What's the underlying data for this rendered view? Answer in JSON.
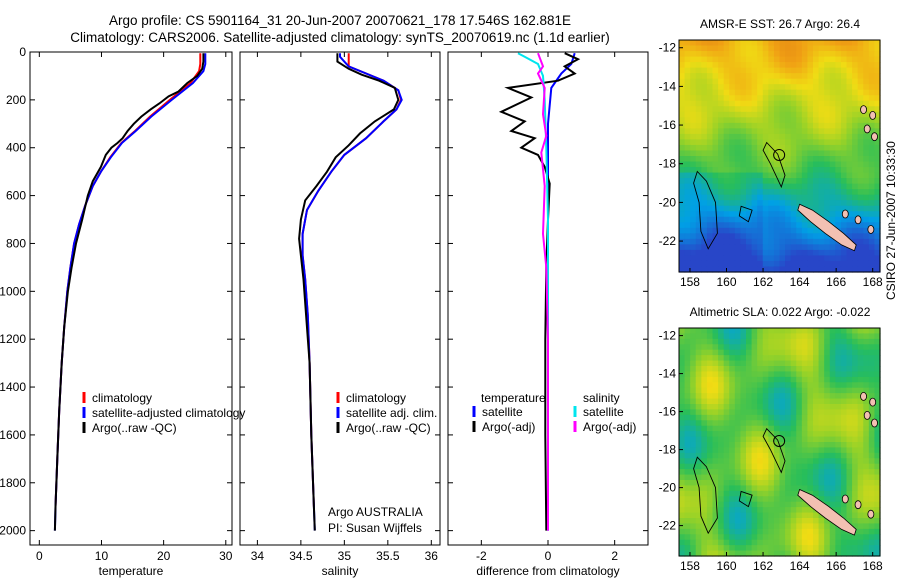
{
  "header": {
    "line1": "Argo profile: CS 5901164_31 20-Jun-2007 20070621_178 17.546S 162.881E",
    "line2": "Climatology: CARS2006. Satellite-adjusted climatology: synTS_20070619.nc (1.1d earlier)"
  },
  "credit": {
    "agency": "Argo AUSTRALIA",
    "pi": "PI: Susan Wijffels",
    "stamp": "CSIRO 27-Jun-2007 10:33:30"
  },
  "colors": {
    "climatology": "#ff0000",
    "satellite": "#0000ff",
    "argo": "#000000",
    "satellite_sal": "#00e5ee",
    "argo_sal": "#ff00ff",
    "land": "#f2c0b2"
  },
  "chart_data": [
    {
      "id": "temperature",
      "type": "line",
      "xlabel": "temperature",
      "xlim": [
        -1.5,
        31
      ],
      "ylim": [
        2060,
        0
      ],
      "xticks": [
        0,
        10,
        20,
        30
      ],
      "yticks": [
        0,
        200,
        400,
        600,
        800,
        1000,
        1200,
        1400,
        1600,
        1800,
        2000
      ],
      "legend": [
        "climatology",
        "satellite-adjusted climatology",
        "Argo(..raw -QC)"
      ],
      "series": [
        {
          "name": "climatology",
          "color": "#ff0000",
          "points": [
            [
              25.9,
              5
            ],
            [
              25.9,
              50
            ],
            [
              25.7,
              80
            ],
            [
              24.3,
              130
            ],
            [
              21,
              200
            ],
            [
              17.8,
              270
            ],
            [
              15.4,
              330
            ],
            [
              13.2,
              380
            ],
            [
              11.4,
              440
            ],
            [
              9.9,
              500
            ],
            [
              8.6,
              560
            ],
            [
              7.4,
              640
            ],
            [
              6.4,
              720
            ],
            [
              5.6,
              800
            ],
            [
              5.0,
              900
            ],
            [
              4.5,
              1000
            ],
            [
              4.0,
              1150
            ],
            [
              3.6,
              1300
            ],
            [
              3.2,
              1500
            ],
            [
              2.9,
              1700
            ],
            [
              2.6,
              1900
            ]
          ]
        },
        {
          "name": "satellite-adjusted climatology",
          "color": "#0000ff",
          "points": [
            [
              26.7,
              5
            ],
            [
              26.7,
              50
            ],
            [
              26.4,
              80
            ],
            [
              24.7,
              130
            ],
            [
              21.3,
              200
            ],
            [
              18,
              270
            ],
            [
              15.5,
              330
            ],
            [
              13.3,
              380
            ],
            [
              11.5,
              440
            ],
            [
              9.9,
              500
            ],
            [
              8.6,
              560
            ],
            [
              7.4,
              640
            ],
            [
              6.4,
              720
            ],
            [
              5.6,
              800
            ],
            [
              5.0,
              900
            ],
            [
              4.5,
              1000
            ],
            [
              4.0,
              1150
            ],
            [
              3.6,
              1300
            ],
            [
              3.2,
              1500
            ],
            [
              2.9,
              1700
            ],
            [
              2.6,
              1900
            ],
            [
              2.5,
              2000
            ]
          ]
        },
        {
          "name": "Argo(..raw -QC)",
          "color": "#000000",
          "points": [
            [
              26.4,
              5
            ],
            [
              26.4,
              40
            ],
            [
              26.2,
              70
            ],
            [
              25.4,
              100
            ],
            [
              23.8,
              130
            ],
            [
              22.4,
              165
            ],
            [
              20.8,
              185
            ],
            [
              19.3,
              215
            ],
            [
              17.9,
              240
            ],
            [
              16.4,
              270
            ],
            [
              15.2,
              300
            ],
            [
              14.2,
              330
            ],
            [
              13.4,
              360
            ],
            [
              12.6,
              380
            ],
            [
              11.6,
              400
            ],
            [
              10.7,
              430
            ],
            [
              9.9,
              480
            ],
            [
              8.6,
              540
            ],
            [
              7.8,
              600
            ],
            [
              6.9,
              700
            ],
            [
              5.9,
              800
            ],
            [
              5.2,
              900
            ],
            [
              4.6,
              1000
            ],
            [
              4.0,
              1150
            ],
            [
              3.6,
              1300
            ],
            [
              3.2,
              1500
            ],
            [
              2.9,
              1700
            ],
            [
              2.6,
              1900
            ],
            [
              2.5,
              2000
            ]
          ]
        }
      ]
    },
    {
      "id": "salinity",
      "type": "line",
      "xlabel": "salinity",
      "xlim": [
        33.8,
        36.1
      ],
      "ylim": [
        2060,
        0
      ],
      "xticks": [
        34,
        34.5,
        35,
        35.5,
        36
      ],
      "legend": [
        "climatology",
        "satellite adj. clim.",
        "Argo(..raw -QC)"
      ],
      "series": [
        {
          "name": "climatology",
          "color": "#ff0000",
          "points": [
            [
              35.05,
              5
            ],
            [
              35.05,
              60
            ],
            [
              35.25,
              90
            ],
            [
              35.45,
              120
            ],
            [
              35.62,
              160
            ],
            [
              35.65,
              200
            ],
            [
              35.6,
              240
            ],
            [
              35.45,
              290
            ],
            [
              35.25,
              360
            ],
            [
              35.0,
              430
            ],
            [
              34.85,
              500
            ],
            [
              34.7,
              580
            ],
            [
              34.57,
              660
            ],
            [
              34.52,
              760
            ],
            [
              34.52,
              850
            ],
            [
              34.55,
              950
            ],
            [
              34.58,
              1100
            ],
            [
              34.6,
              1300
            ],
            [
              34.62,
              1600
            ],
            [
              34.65,
              1900
            ]
          ]
        },
        {
          "name": "satellite adj. clim.",
          "color": "#0000ff",
          "points": [
            [
              34.95,
              5
            ],
            [
              34.95,
              20
            ],
            [
              35.0,
              40
            ],
            [
              35.05,
              60
            ],
            [
              35.25,
              90
            ],
            [
              35.45,
              120
            ],
            [
              35.62,
              160
            ],
            [
              35.66,
              200
            ],
            [
              35.6,
              240
            ],
            [
              35.45,
              290
            ],
            [
              35.25,
              360
            ],
            [
              35.0,
              430
            ],
            [
              34.85,
              500
            ],
            [
              34.7,
              580
            ],
            [
              34.57,
              660
            ],
            [
              34.52,
              760
            ],
            [
              34.52,
              850
            ],
            [
              34.55,
              950
            ],
            [
              34.58,
              1100
            ],
            [
              34.6,
              1300
            ],
            [
              34.62,
              1600
            ],
            [
              34.65,
              1900
            ],
            [
              34.66,
              2000
            ]
          ]
        },
        {
          "name": "Argo(..raw -QC)",
          "color": "#000000",
          "points": [
            [
              34.92,
              5
            ],
            [
              34.92,
              40
            ],
            [
              35.05,
              70
            ],
            [
              35.2,
              95
            ],
            [
              35.4,
              120
            ],
            [
              35.58,
              150
            ],
            [
              35.62,
              200
            ],
            [
              35.57,
              240
            ],
            [
              35.35,
              290
            ],
            [
              35.18,
              340
            ],
            [
              35.05,
              390
            ],
            [
              34.9,
              440
            ],
            [
              34.8,
              500
            ],
            [
              34.68,
              560
            ],
            [
              34.55,
              620
            ],
            [
              34.5,
              700
            ],
            [
              34.48,
              780
            ],
            [
              34.5,
              850
            ],
            [
              34.53,
              950
            ],
            [
              34.56,
              1100
            ],
            [
              34.6,
              1300
            ],
            [
              34.62,
              1600
            ],
            [
              34.65,
              1900
            ],
            [
              34.66,
              2000
            ]
          ]
        }
      ]
    },
    {
      "id": "difference",
      "type": "line",
      "xlabel": "difference from climatology",
      "xlim": [
        -3,
        3
      ],
      "ylim": [
        2060,
        0
      ],
      "xticks": [
        -2,
        0,
        2
      ],
      "legend_headers": [
        "temperature",
        "salinity"
      ],
      "legend": [
        "satellite",
        "Argo(-adj)",
        "satellite",
        "Argo(-adj)"
      ],
      "series": [
        {
          "name": "satellite",
          "color": "#0000ff",
          "points": [
            [
              0.8,
              5
            ],
            [
              0.7,
              50
            ],
            [
              0.4,
              90
            ],
            [
              0.1,
              150
            ],
            [
              0,
              300
            ],
            [
              0,
              2000
            ]
          ]
        },
        {
          "name": "Argo(-adj)",
          "color": "#000000",
          "points": [
            [
              0.5,
              5
            ],
            [
              0.9,
              30
            ],
            [
              0.5,
              60
            ],
            [
              0.8,
              90
            ],
            [
              0.3,
              120
            ],
            [
              -1.2,
              150
            ],
            [
              -0.5,
              190
            ],
            [
              -1.4,
              250
            ],
            [
              -0.7,
              290
            ],
            [
              -1.1,
              330
            ],
            [
              -0.4,
              360
            ],
            [
              -0.8,
              400
            ],
            [
              -0.3,
              430
            ],
            [
              -0.1,
              480
            ],
            [
              0.05,
              550
            ],
            [
              0,
              700
            ],
            [
              -0.05,
              900
            ],
            [
              -0.08,
              1200
            ],
            [
              -0.08,
              1600
            ],
            [
              -0.05,
              2000
            ]
          ]
        },
        {
          "name": "satellite",
          "color": "#00e5ee",
          "points": [
            [
              -0.9,
              5
            ],
            [
              -0.7,
              20
            ],
            [
              -0.3,
              50
            ],
            [
              -0.15,
              100
            ],
            [
              -0.1,
              200
            ],
            [
              -0.05,
              400
            ],
            [
              0,
              700
            ],
            [
              0,
              2000
            ]
          ]
        },
        {
          "name": "Argo(-adj)",
          "color": "#ff00ff",
          "points": [
            [
              -0.3,
              5
            ],
            [
              -0.15,
              60
            ],
            [
              -0.3,
              90
            ],
            [
              -0.1,
              150
            ],
            [
              -0.15,
              260
            ],
            [
              -0.05,
              350
            ],
            [
              -0.2,
              420
            ],
            [
              -0.1,
              560
            ],
            [
              -0.15,
              760
            ],
            [
              -0.05,
              900
            ],
            [
              0,
              1200
            ],
            [
              0,
              2000
            ]
          ]
        }
      ]
    }
  ],
  "maps": [
    {
      "id": "sst",
      "title": "AMSR-E SST: 26.7 Argo: 26.4",
      "xlim": [
        157.4,
        168.4
      ],
      "ylim": [
        -23.6,
        -11.6
      ],
      "xticks": [
        158,
        160,
        162,
        164,
        166,
        168
      ],
      "yticks": [
        -12,
        -14,
        -16,
        -18,
        -20,
        -22
      ],
      "float_position": [
        162.881,
        -17.546
      ]
    },
    {
      "id": "sla",
      "title": "Altimetric SLA: 0.022 Argo: -0.022",
      "xlim": [
        157.4,
        168.4
      ],
      "ylim": [
        -23.6,
        -11.6
      ],
      "xticks": [
        158,
        160,
        162,
        164,
        166,
        168
      ],
      "yticks": [
        -12,
        -14,
        -16,
        -18,
        -20,
        -22
      ],
      "float_position": [
        162.881,
        -17.546
      ]
    }
  ]
}
